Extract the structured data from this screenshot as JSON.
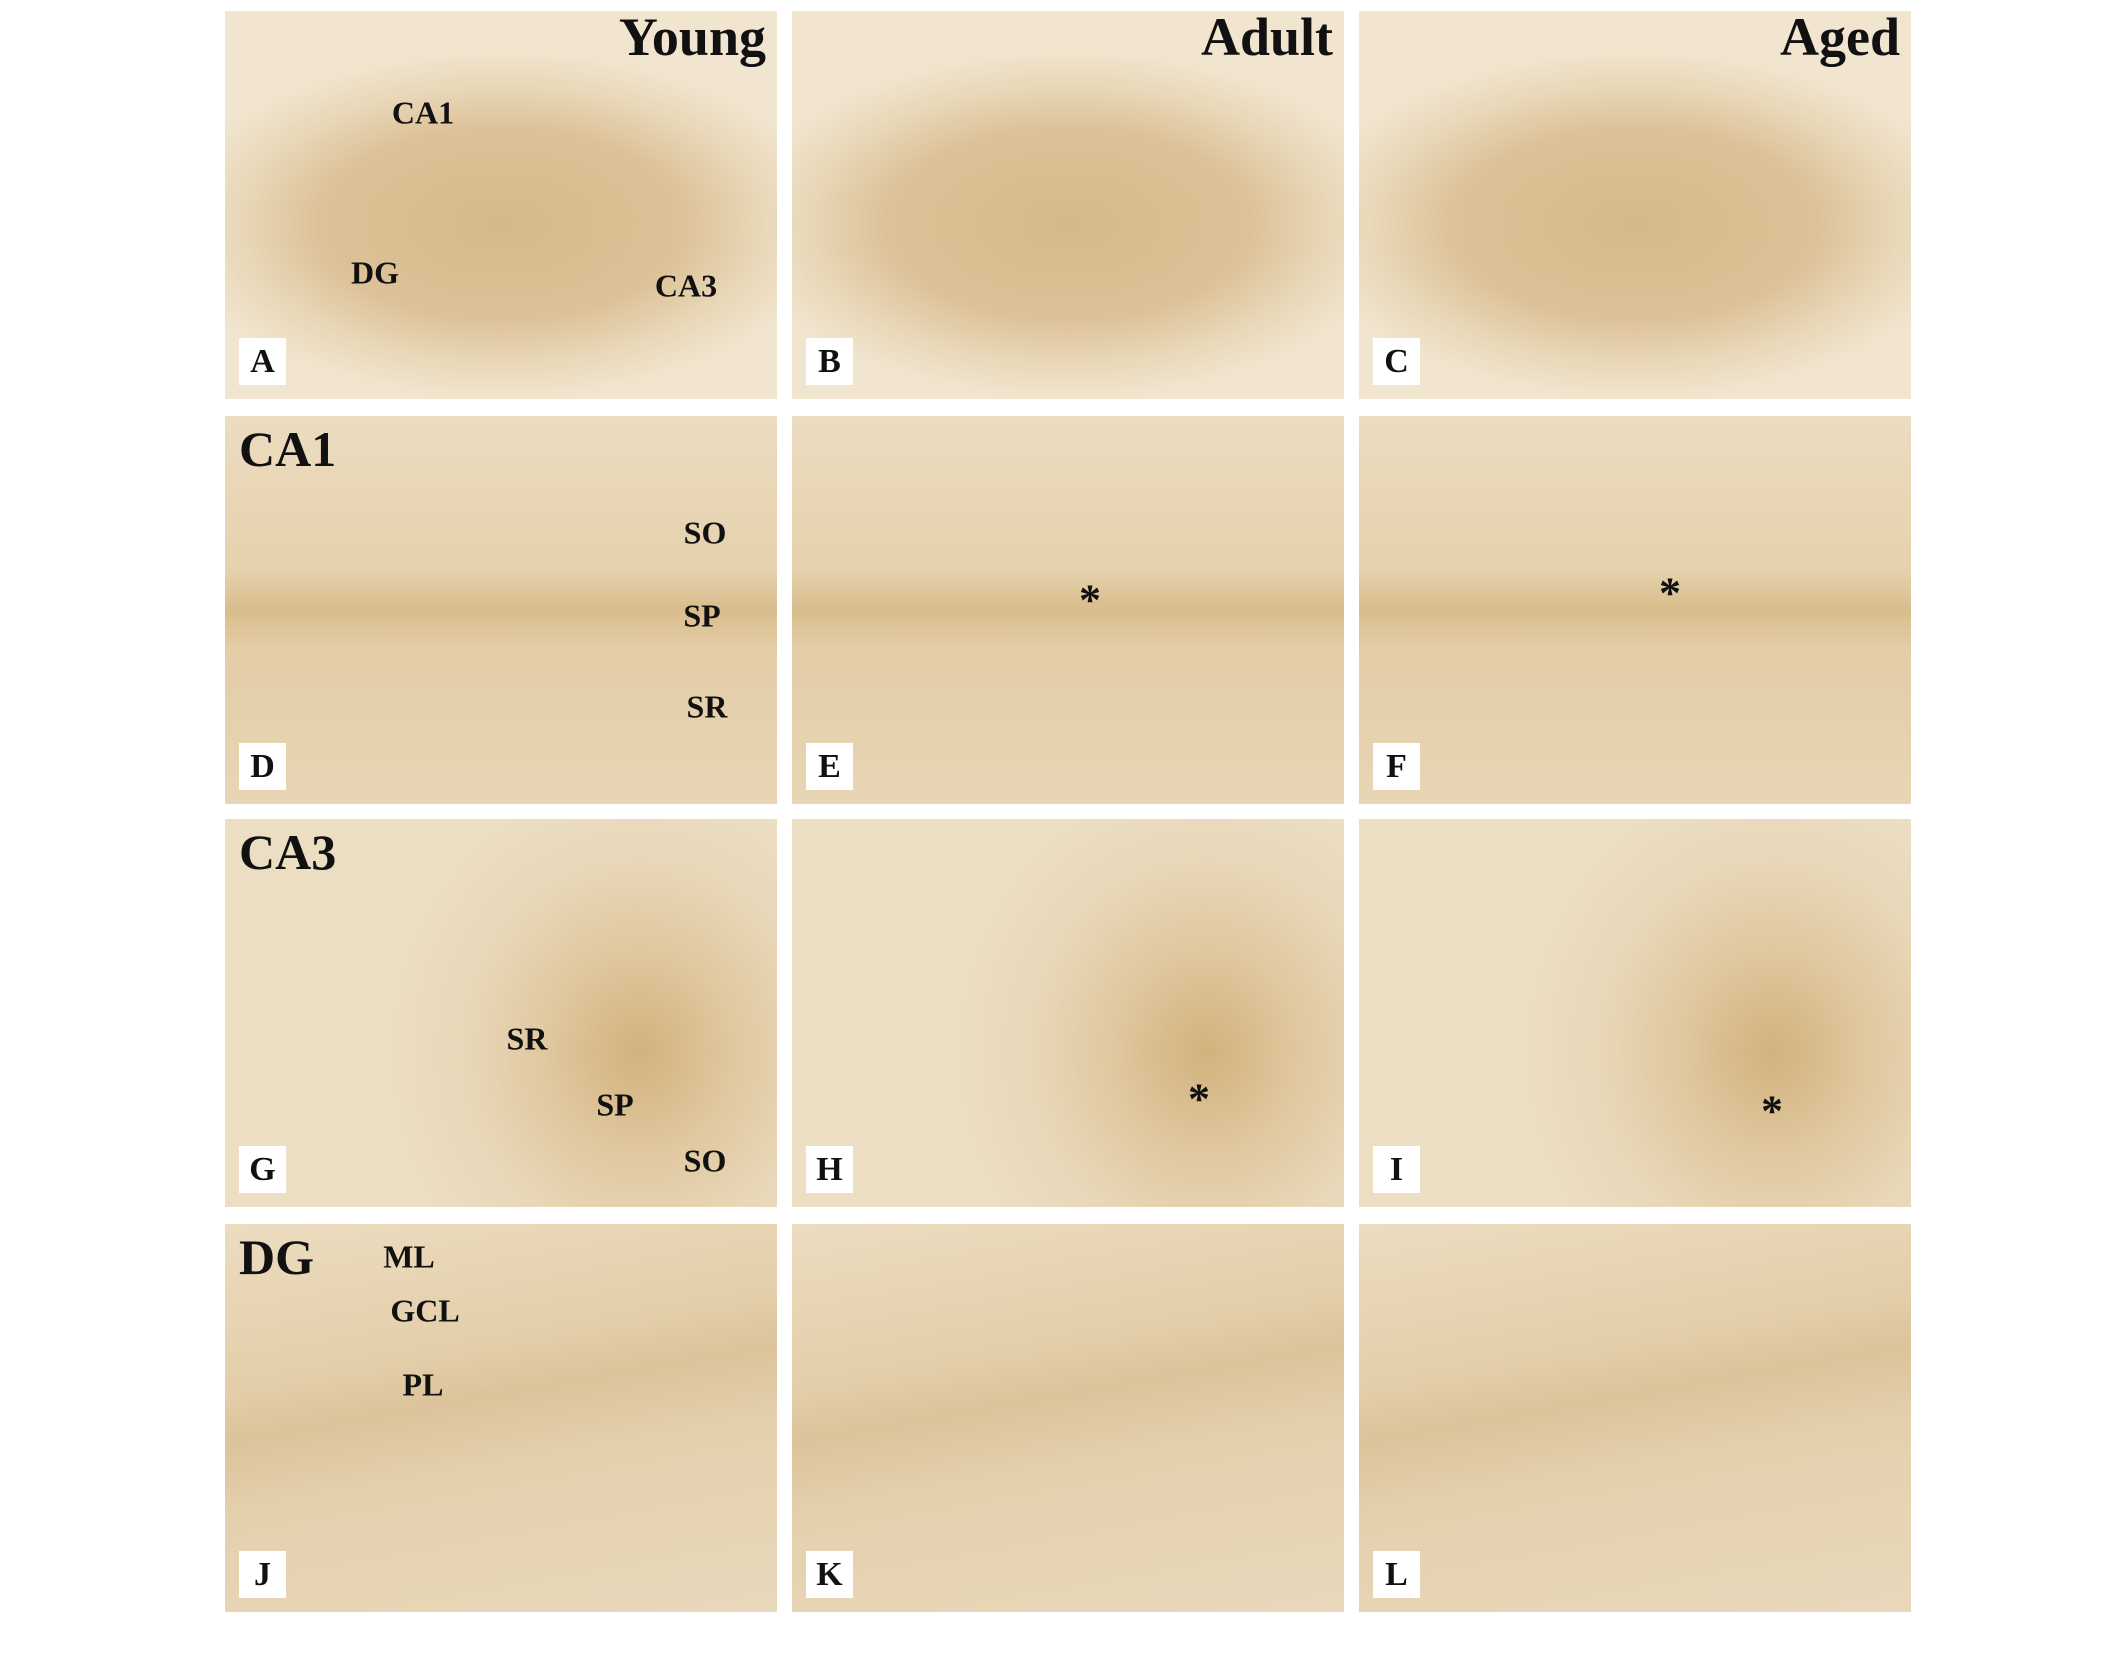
{
  "column_headers": [
    "Young",
    "Adult",
    "Aged"
  ],
  "panels": [
    {
      "letter": "A",
      "labels": [
        "CA1",
        "DG",
        "CA3"
      ]
    },
    {
      "letter": "B",
      "labels": []
    },
    {
      "letter": "C",
      "labels": []
    },
    {
      "letter": "D",
      "region": "CA1",
      "labels": [
        "SO",
        "SP",
        "SR"
      ]
    },
    {
      "letter": "E",
      "labels": [
        "*"
      ]
    },
    {
      "letter": "F",
      "labels": [
        "*"
      ]
    },
    {
      "letter": "G",
      "region": "CA3",
      "labels": [
        "SR",
        "SP",
        "SO"
      ]
    },
    {
      "letter": "H",
      "labels": [
        "*"
      ]
    },
    {
      "letter": "I",
      "labels": [
        "*"
      ]
    },
    {
      "letter": "J",
      "region": "DG",
      "labels": [
        "ML",
        "GCL",
        "PL"
      ]
    },
    {
      "letter": "K",
      "labels": []
    },
    {
      "letter": "L",
      "labels": []
    }
  ]
}
